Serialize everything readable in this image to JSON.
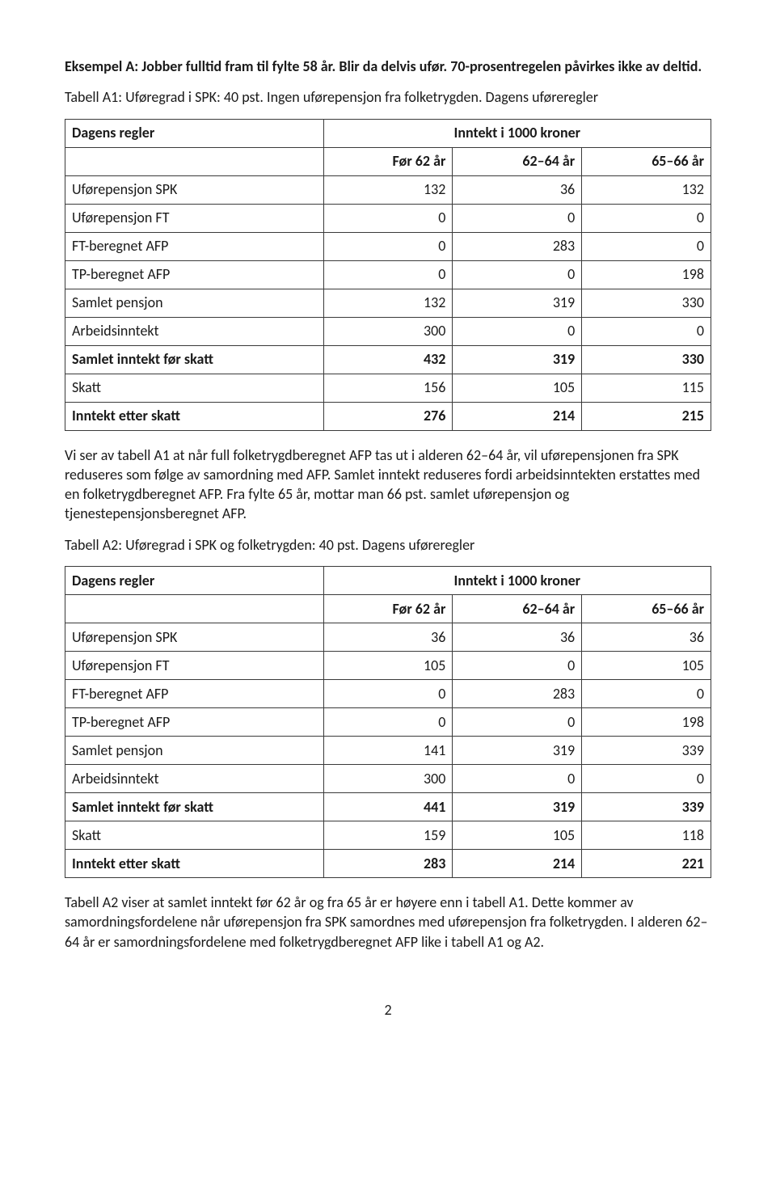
{
  "heading": "Eksempel A: Jobber fulltid fram til fylte 58 år. Blir da delvis ufør. 70-prosentregelen påvirkes ikke av deltid.",
  "intro1": "Tabell A1: Uføregrad i SPK: 40 pst. Ingen uførepensjon fra folketrygden. Dagens uføreregler",
  "tableA1": {
    "title": "Dagens regler",
    "group_header": "Inntekt i 1000 kroner",
    "columns": [
      "Før 62 år",
      "62–64 år",
      "65–66 år"
    ],
    "rows": [
      {
        "label": "Uførepensjon SPK",
        "values": [
          "132",
          "36",
          "132"
        ],
        "bold": false
      },
      {
        "label": "Uførepensjon FT",
        "values": [
          "0",
          "0",
          "0"
        ],
        "bold": false
      },
      {
        "label": "FT-beregnet AFP",
        "values": [
          "0",
          "283",
          "0"
        ],
        "bold": false
      },
      {
        "label": "TP-beregnet AFP",
        "values": [
          "0",
          "0",
          "198"
        ],
        "bold": false
      },
      {
        "label": "Samlet pensjon",
        "values": [
          "132",
          "319",
          "330"
        ],
        "bold": false
      },
      {
        "label": "Arbeidsinntekt",
        "values": [
          "300",
          "0",
          "0"
        ],
        "bold": false
      },
      {
        "label": "Samlet inntekt før skatt",
        "values": [
          "432",
          "319",
          "330"
        ],
        "bold": true
      },
      {
        "label": "Skatt",
        "values": [
          "156",
          "105",
          "115"
        ],
        "bold": false
      },
      {
        "label": "Inntekt etter skatt",
        "values": [
          "276",
          "214",
          "215"
        ],
        "bold": true
      }
    ]
  },
  "para1": "Vi ser av tabell A1 at når full folketrygdberegnet AFP tas ut i alderen 62–64 år, vil uførepensjonen fra SPK reduseres som følge av samordning med AFP. Samlet inntekt reduseres fordi arbeidsinntekten erstattes med en folketrygdberegnet AFP. Fra fylte 65 år, mottar man 66 pst. samlet uførepensjon og tjenestepensjonsberegnet AFP.",
  "intro2": "Tabell A2: Uføregrad i SPK og folketrygden: 40 pst. Dagens uføreregler",
  "tableA2": {
    "title": "Dagens regler",
    "group_header": "Inntekt i 1000 kroner",
    "columns": [
      "Før 62 år",
      "62–64 år",
      "65–66 år"
    ],
    "rows": [
      {
        "label": "Uførepensjon SPK",
        "values": [
          "36",
          "36",
          "36"
        ],
        "bold": false
      },
      {
        "label": "Uførepensjon FT",
        "values": [
          "105",
          "0",
          "105"
        ],
        "bold": false
      },
      {
        "label": "FT-beregnet AFP",
        "values": [
          "0",
          "283",
          "0"
        ],
        "bold": false
      },
      {
        "label": "TP-beregnet AFP",
        "values": [
          "0",
          "0",
          "198"
        ],
        "bold": false
      },
      {
        "label": "Samlet pensjon",
        "values": [
          "141",
          "319",
          "339"
        ],
        "bold": false
      },
      {
        "label": "Arbeidsinntekt",
        "values": [
          "300",
          "0",
          "0"
        ],
        "bold": false
      },
      {
        "label": "Samlet inntekt før skatt",
        "values": [
          "441",
          "319",
          "339"
        ],
        "bold": true
      },
      {
        "label": "Skatt",
        "values": [
          "159",
          "105",
          "118"
        ],
        "bold": false
      },
      {
        "label": "Inntekt etter skatt",
        "values": [
          "283",
          "214",
          "221"
        ],
        "bold": true
      }
    ]
  },
  "para2": "Tabell A2 viser at samlet inntekt før 62 år og fra 65 år er høyere enn i tabell A1. Dette kommer av samordningsfordelene når uførepensjon fra SPK samordnes med uførepensjon fra folketrygden. I alderen 62–64 år er samordningsfordelene med folketrygdberegnet AFP like i tabell A1 og A2.",
  "page_number": "2"
}
